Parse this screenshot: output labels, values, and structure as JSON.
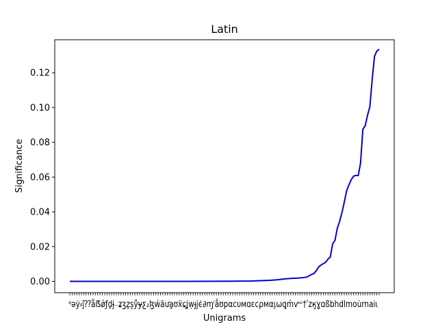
{
  "chart_data": {
    "type": "line",
    "title": "Latin",
    "xlabel": "Unigrams",
    "ylabel": "Significance",
    "ylim": [
      -0.0065,
      0.139
    ],
    "yticks": [
      "0.00",
      "0.02",
      "0.04",
      "0.06",
      "0.08",
      "0.10",
      "0.12"
    ],
    "ytick_values": [
      0.0,
      0.02,
      0.04,
      0.06,
      0.08,
      0.1,
      0.12
    ],
    "xtick_count": 134,
    "xtick_labels_text": "ᵃəẏ⸗ĵ⁇ẵẞǿƒḏɉ₋ʑʒẕşẙɏƹ₂ɮẃäưḁʊẍɕʝẉɟϳϵ̇∂ɱⁱẳʊpαcυмɑεcρмαι̧ωq̧ḿⱱ⁼†ʹzӄɣɑßbhdlmou̇rnaiι",
    "grid": false,
    "legend": "none",
    "color": "#0000cc",
    "series": [
      {
        "x": [
          0,
          10,
          20,
          30,
          40,
          50,
          60,
          70,
          78,
          80,
          82,
          84,
          86,
          88,
          90,
          92,
          94,
          96,
          98,
          100,
          102,
          103,
          104,
          105,
          106,
          107,
          108,
          109,
          110,
          111,
          112,
          113,
          114,
          115,
          116,
          117,
          118,
          119,
          120,
          121,
          122,
          123,
          124,
          125,
          126,
          127,
          128,
          129,
          130,
          131,
          132,
          133
        ],
        "y": [
          0.0,
          0.0,
          0.0,
          0.0,
          0.0,
          0.0,
          5e-05,
          0.0001,
          0.0002,
          0.0003,
          0.0004,
          0.0005,
          0.0006,
          0.0008,
          0.001,
          0.0014,
          0.0016,
          0.0018,
          0.0019,
          0.0021,
          0.0025,
          0.0033,
          0.004,
          0.0045,
          0.0062,
          0.0083,
          0.0094,
          0.0102,
          0.011,
          0.0128,
          0.014,
          0.0215,
          0.0236,
          0.0305,
          0.0345,
          0.0395,
          0.0455,
          0.052,
          0.0555,
          0.0585,
          0.0605,
          0.061,
          0.0608,
          0.068,
          0.0875,
          0.0895,
          0.0955,
          0.1005,
          0.116,
          0.1295,
          0.1325,
          0.1335
        ]
      }
    ]
  }
}
